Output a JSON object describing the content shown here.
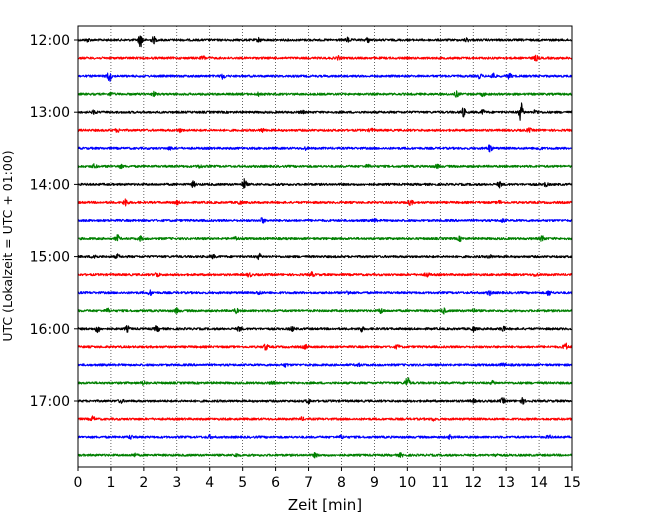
{
  "chart_data": {
    "type": "line",
    "subtype": "helicorder",
    "title": "",
    "xlabel": "Zeit  [min]",
    "ylabel": "UTC (Lokalzeit = UTC + 01:00)",
    "xlim": [
      0,
      15
    ],
    "x_ticks": [
      "0",
      "1",
      "2",
      "3",
      "4",
      "5",
      "6",
      "7",
      "8",
      "9",
      "10",
      "11",
      "12",
      "13",
      "14",
      "15"
    ],
    "y_tick_labels": [
      "12:00",
      "13:00",
      "14:00",
      "15:00",
      "16:00",
      "17:00"
    ],
    "grid": "vertical dotted lines at each minute",
    "trace_colors": [
      "#000000",
      "#ff0000",
      "#0000ff",
      "#008000"
    ],
    "traces": [
      {
        "start_utc": "12:00",
        "events": [
          [
            1.9,
            6.5
          ],
          [
            2.3,
            3
          ],
          [
            0.3,
            1.5
          ],
          [
            5.5,
            2
          ],
          [
            8.2,
            2.2
          ],
          [
            8.8,
            2
          ],
          [
            11.8,
            1.6
          ]
        ]
      },
      {
        "start_utc": "12:15",
        "events": [
          [
            3.8,
            1.8
          ],
          [
            7.9,
            1.5
          ],
          [
            13.9,
            2.5
          ]
        ]
      },
      {
        "start_utc": "12:30",
        "events": [
          [
            0.95,
            5
          ],
          [
            4.4,
            2.5
          ],
          [
            12.2,
            2
          ],
          [
            12.6,
            3
          ],
          [
            13.1,
            2.5
          ]
        ]
      },
      {
        "start_utc": "12:45",
        "events": [
          [
            1.0,
            1.5
          ],
          [
            2.3,
            2
          ],
          [
            5.5,
            1.6
          ],
          [
            11.5,
            2.5
          ],
          [
            12.3,
            1.5
          ]
        ]
      },
      {
        "start_utc": "13:00",
        "events": [
          [
            0.5,
            1.8
          ],
          [
            6.8,
            1.5
          ],
          [
            11.7,
            4
          ],
          [
            12.3,
            2
          ],
          [
            13.45,
            9
          ],
          [
            13.9,
            2
          ]
        ]
      },
      {
        "start_utc": "13:15",
        "events": [
          [
            1.2,
            1.5
          ],
          [
            3.1,
            1.5
          ],
          [
            5.6,
            1.5
          ],
          [
            8.9,
            1.5
          ],
          [
            13.7,
            1.6
          ]
        ]
      },
      {
        "start_utc": "13:30",
        "events": [
          [
            2.8,
            1.3
          ],
          [
            6.9,
            1.2
          ],
          [
            12.5,
            3.5
          ],
          [
            14.0,
            1.8
          ]
        ]
      },
      {
        "start_utc": "13:45",
        "events": [
          [
            0.5,
            1.8
          ],
          [
            1.3,
            1.5
          ],
          [
            3.7,
            1.5
          ],
          [
            8.8,
            1.5
          ],
          [
            10.9,
            1.6
          ]
        ]
      },
      {
        "start_utc": "14:00",
        "events": [
          [
            3.5,
            2.5
          ],
          [
            5.05,
            5
          ],
          [
            12.8,
            2.5
          ],
          [
            14.2,
            2
          ]
        ]
      },
      {
        "start_utc": "14:15",
        "events": [
          [
            1.45,
            4
          ],
          [
            3.0,
            1.5
          ],
          [
            4.9,
            1.8
          ],
          [
            10.1,
            2.5
          ],
          [
            12.8,
            1.5
          ]
        ]
      },
      {
        "start_utc": "14:30",
        "events": [
          [
            5.6,
            2.5
          ],
          [
            9.0,
            1.5
          ],
          [
            12.9,
            1.5
          ]
        ]
      },
      {
        "start_utc": "14:45",
        "events": [
          [
            1.2,
            3
          ],
          [
            1.9,
            2
          ],
          [
            4.8,
            1.6
          ],
          [
            11.6,
            2
          ],
          [
            14.1,
            2.8
          ]
        ]
      },
      {
        "start_utc": "15:00",
        "events": [
          [
            0.5,
            2.5
          ],
          [
            1.2,
            1.8
          ],
          [
            4.1,
            1.5
          ],
          [
            5.5,
            2.5
          ],
          [
            12.5,
            1.5
          ]
        ]
      },
      {
        "start_utc": "15:15",
        "events": [
          [
            2.4,
            2.2
          ],
          [
            5.2,
            1.8
          ],
          [
            7.1,
            2
          ],
          [
            10.6,
            2
          ],
          [
            13.9,
            1.6
          ]
        ]
      },
      {
        "start_utc": "15:30",
        "events": [
          [
            2.2,
            2.2
          ],
          [
            5.5,
            1.6
          ],
          [
            8.2,
            1.6
          ],
          [
            12.5,
            2.2
          ],
          [
            14.3,
            2.5
          ]
        ]
      },
      {
        "start_utc": "15:45",
        "events": [
          [
            0.9,
            1.8
          ],
          [
            3.0,
            2.2
          ],
          [
            4.8,
            2
          ],
          [
            9.2,
            2.5
          ],
          [
            11.1,
            2.4
          ],
          [
            12.0,
            1.8
          ]
        ]
      },
      {
        "start_utc": "16:00",
        "events": [
          [
            0.6,
            3.5
          ],
          [
            1.5,
            2.5
          ],
          [
            2.4,
            2.8
          ],
          [
            4.9,
            2.2
          ],
          [
            6.5,
            2
          ],
          [
            8.6,
            2.5
          ],
          [
            12.0,
            2.2
          ],
          [
            12.9,
            2.5
          ]
        ]
      },
      {
        "start_utc": "16:15",
        "events": [
          [
            5.7,
            3
          ],
          [
            6.9,
            2
          ],
          [
            9.7,
            1.6
          ],
          [
            14.8,
            3.5
          ]
        ]
      },
      {
        "start_utc": "16:30",
        "events": [
          [
            6.3,
            1.4
          ],
          [
            8.5,
            1.4
          ],
          [
            12.9,
            1.4
          ]
        ]
      },
      {
        "start_utc": "16:45",
        "events": [
          [
            2.0,
            2
          ],
          [
            5.9,
            1.5
          ],
          [
            10.0,
            6
          ],
          [
            12.6,
            1.6
          ]
        ]
      },
      {
        "start_utc": "17:00",
        "events": [
          [
            1.3,
            1.6
          ],
          [
            7.0,
            2.2
          ],
          [
            12.0,
            1.5
          ],
          [
            12.9,
            2.5
          ],
          [
            13.5,
            2.5
          ]
        ]
      },
      {
        "start_utc": "17:15",
        "events": [
          [
            0.45,
            2.2
          ],
          [
            6.8,
            1.3
          ],
          [
            10.8,
            1.3
          ]
        ]
      },
      {
        "start_utc": "17:30",
        "events": [
          [
            1.6,
            1.6
          ],
          [
            4.0,
            1.6
          ],
          [
            8.0,
            1.5
          ],
          [
            11.3,
            1.6
          ],
          [
            14.3,
            1.5
          ]
        ]
      },
      {
        "start_utc": "17:45",
        "events": [
          [
            1.7,
            1.5
          ],
          [
            4.8,
            1.5
          ],
          [
            7.2,
            1.8
          ],
          [
            9.8,
            1.5
          ],
          [
            12.7,
            1.4
          ]
        ]
      }
    ]
  }
}
